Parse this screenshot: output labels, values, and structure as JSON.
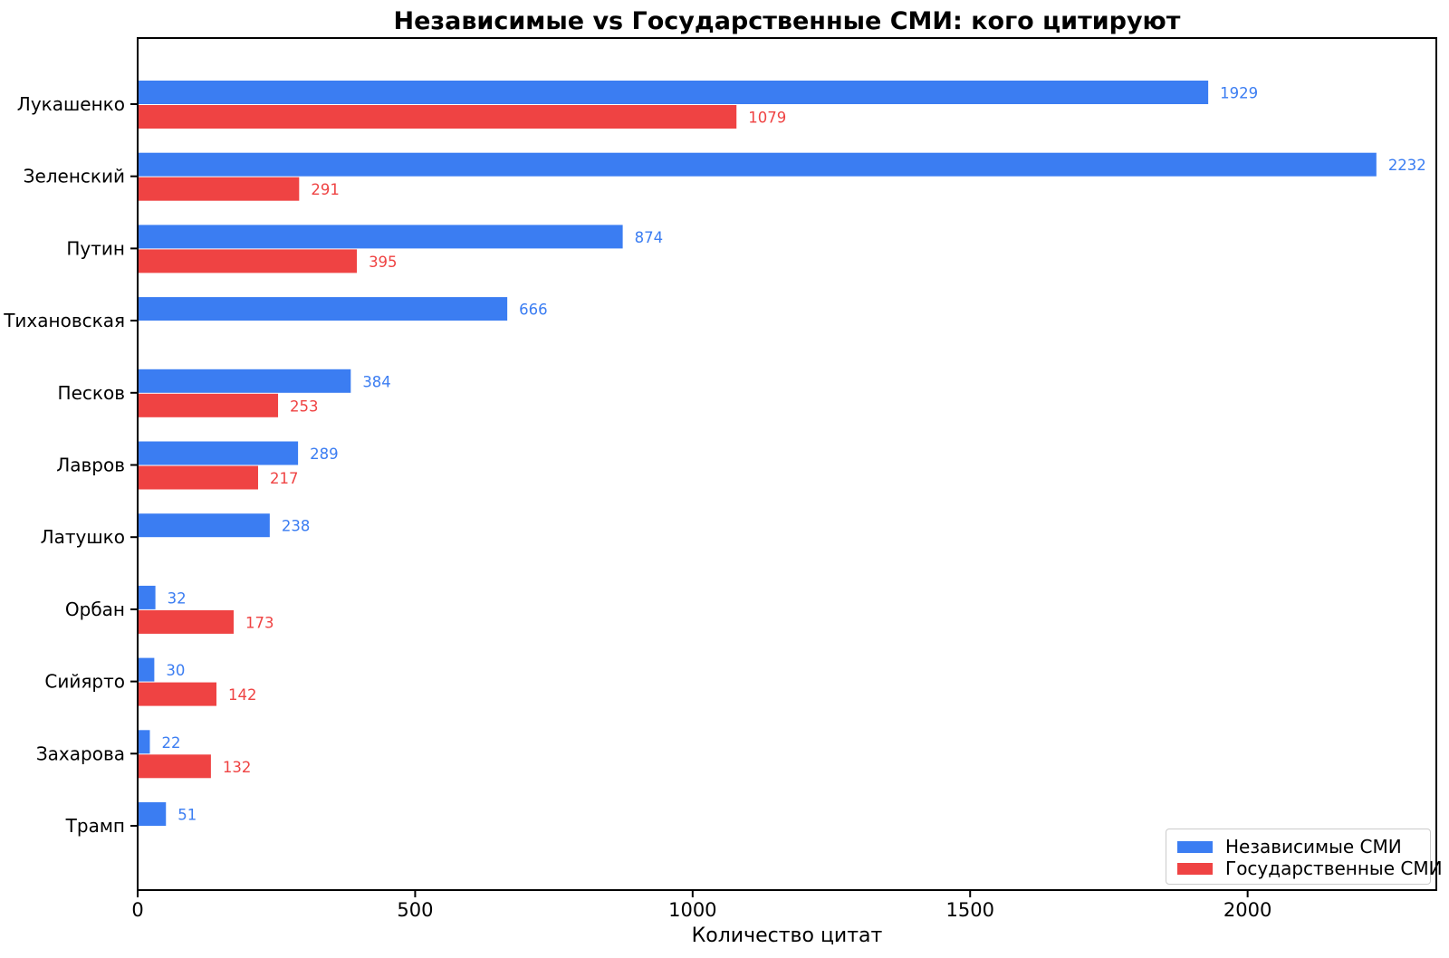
{
  "chart_data": {
    "type": "bar",
    "orientation": "horizontal",
    "title": "Независимые vs Государственные СМИ: кого цитируют",
    "xlabel": "Количество цитат",
    "ylabel": "",
    "categories": [
      "Лукашенко",
      "Зеленский",
      "Путин",
      "Тихановская",
      "Песков",
      "Лавров",
      "Латушко",
      "Орбан",
      "Сийярто",
      "Захарова",
      "Трамп"
    ],
    "series": [
      {
        "name": "Независимые СМИ",
        "color": "#3B7DF2",
        "values": [
          1929,
          2232,
          874,
          666,
          384,
          289,
          238,
          32,
          30,
          22,
          51
        ]
      },
      {
        "name": "Государственные СМИ",
        "color": "#EF4343",
        "values": [
          1079,
          291,
          395,
          0,
          253,
          217,
          0,
          173,
          142,
          132,
          0
        ]
      }
    ],
    "xlim": [
      0,
      2340
    ],
    "xticks": [
      0,
      500,
      1000,
      1500,
      2000
    ],
    "grid": false,
    "legend_position": "lower right",
    "value_labels": true,
    "axis_color": "#000000",
    "background_color": "#FFFFFF"
  }
}
